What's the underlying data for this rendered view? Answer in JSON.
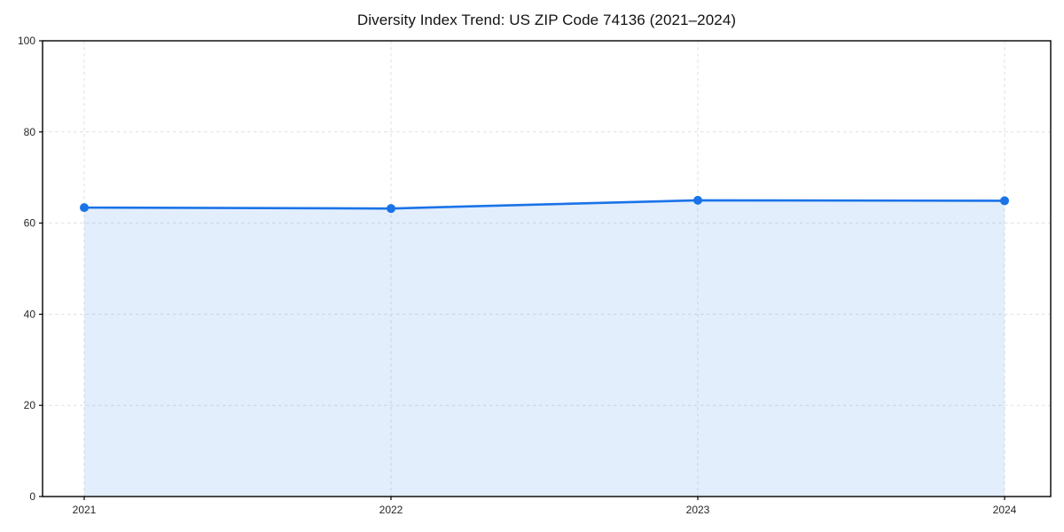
{
  "figure": {
    "background": "#ffffff"
  },
  "chart_data": {
    "type": "area",
    "title": "Diversity Index Trend: US ZIP Code 74136 (2021–2024)",
    "categories": [
      "2021",
      "2022",
      "2023",
      "2024"
    ],
    "series": [
      {
        "name": "Diversity Index",
        "values": [
          63.4,
          63.2,
          65.0,
          64.9
        ]
      }
    ],
    "xlabel": "",
    "ylabel": "",
    "ylim": [
      0,
      100
    ],
    "yticks": [
      0,
      20,
      40,
      60,
      80,
      100
    ],
    "grid": true,
    "grid_style": "dashed",
    "legend_position": "none",
    "line_color": "#1a73e8",
    "marker": "circle",
    "fill_color": "#1a73e8",
    "fill_opacity": 0.12,
    "axis_color": "#000000",
    "tick_label_color": "#262626",
    "grid_color": "#dfdfdf"
  }
}
